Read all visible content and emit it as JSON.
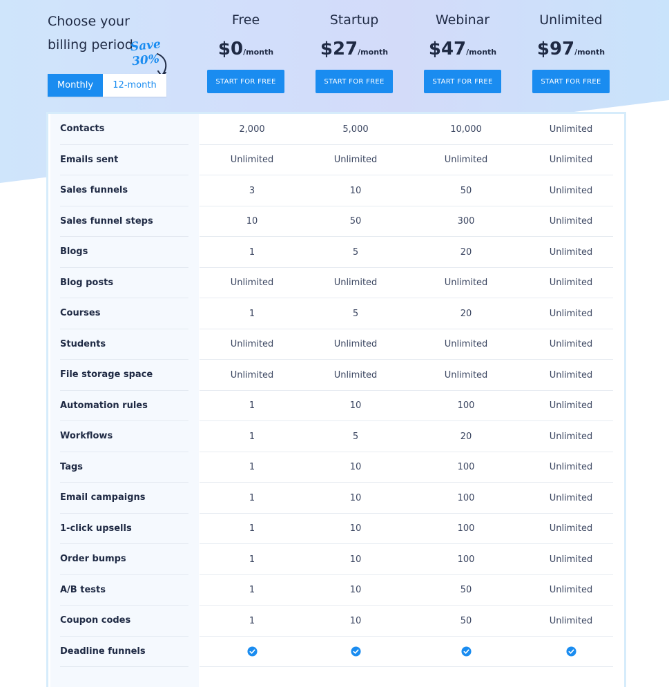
{
  "billing": {
    "title": "Choose your billing period",
    "save_badge": "Save 30%",
    "monthly_label": "Monthly",
    "yearly_label": "12-month",
    "selected": "Monthly"
  },
  "plans": [
    {
      "name": "Free",
      "price": "$0",
      "unit": "/month",
      "cta": "START FOR FREE"
    },
    {
      "name": "Startup",
      "price": "$27",
      "unit": "/month",
      "cta": "START FOR FREE"
    },
    {
      "name": "Webinar",
      "price": "$47",
      "unit": "/month",
      "cta": "START FOR FREE"
    },
    {
      "name": "Unlimited",
      "price": "$97",
      "unit": "/month",
      "cta": "START FOR FREE"
    }
  ],
  "features": [
    {
      "label": "Contacts",
      "values": [
        "2,000",
        "5,000",
        "10,000",
        "Unlimited"
      ]
    },
    {
      "label": "Emails sent",
      "values": [
        "Unlimited",
        "Unlimited",
        "Unlimited",
        "Unlimited"
      ]
    },
    {
      "label": "Sales funnels",
      "values": [
        "3",
        "10",
        "50",
        "Unlimited"
      ]
    },
    {
      "label": "Sales funnel steps",
      "values": [
        "10",
        "50",
        "300",
        "Unlimited"
      ]
    },
    {
      "label": "Blogs",
      "values": [
        "1",
        "5",
        "20",
        "Unlimited"
      ]
    },
    {
      "label": "Blog posts",
      "values": [
        "Unlimited",
        "Unlimited",
        "Unlimited",
        "Unlimited"
      ]
    },
    {
      "label": "Courses",
      "values": [
        "1",
        "5",
        "20",
        "Unlimited"
      ]
    },
    {
      "label": "Students",
      "values": [
        "Unlimited",
        "Unlimited",
        "Unlimited",
        "Unlimited"
      ]
    },
    {
      "label": "File storage space",
      "values": [
        "Unlimited",
        "Unlimited",
        "Unlimited",
        "Unlimited"
      ]
    },
    {
      "label": "Automation rules",
      "values": [
        "1",
        "10",
        "100",
        "Unlimited"
      ]
    },
    {
      "label": "Workflows",
      "values": [
        "1",
        "5",
        "20",
        "Unlimited"
      ]
    },
    {
      "label": "Tags",
      "values": [
        "1",
        "10",
        "100",
        "Unlimited"
      ]
    },
    {
      "label": "Email campaigns",
      "values": [
        "1",
        "10",
        "100",
        "Unlimited"
      ]
    },
    {
      "label": "1-click upsells",
      "values": [
        "1",
        "10",
        "100",
        "Unlimited"
      ]
    },
    {
      "label": "Order bumps",
      "values": [
        "1",
        "10",
        "100",
        "Unlimited"
      ]
    },
    {
      "label": "A/B tests",
      "values": [
        "1",
        "10",
        "50",
        "Unlimited"
      ]
    },
    {
      "label": "Coupon codes",
      "values": [
        "1",
        "10",
        "50",
        "Unlimited"
      ]
    },
    {
      "label": "Deadline funnels",
      "values": [
        "check-icon",
        "check-icon",
        "check-icon",
        "check-icon"
      ]
    }
  ],
  "colors": {
    "accent": "#1a8cf0",
    "text": "#1f2a44",
    "table_border": "#d6ecfb",
    "label_column": "#f5f9fe"
  }
}
